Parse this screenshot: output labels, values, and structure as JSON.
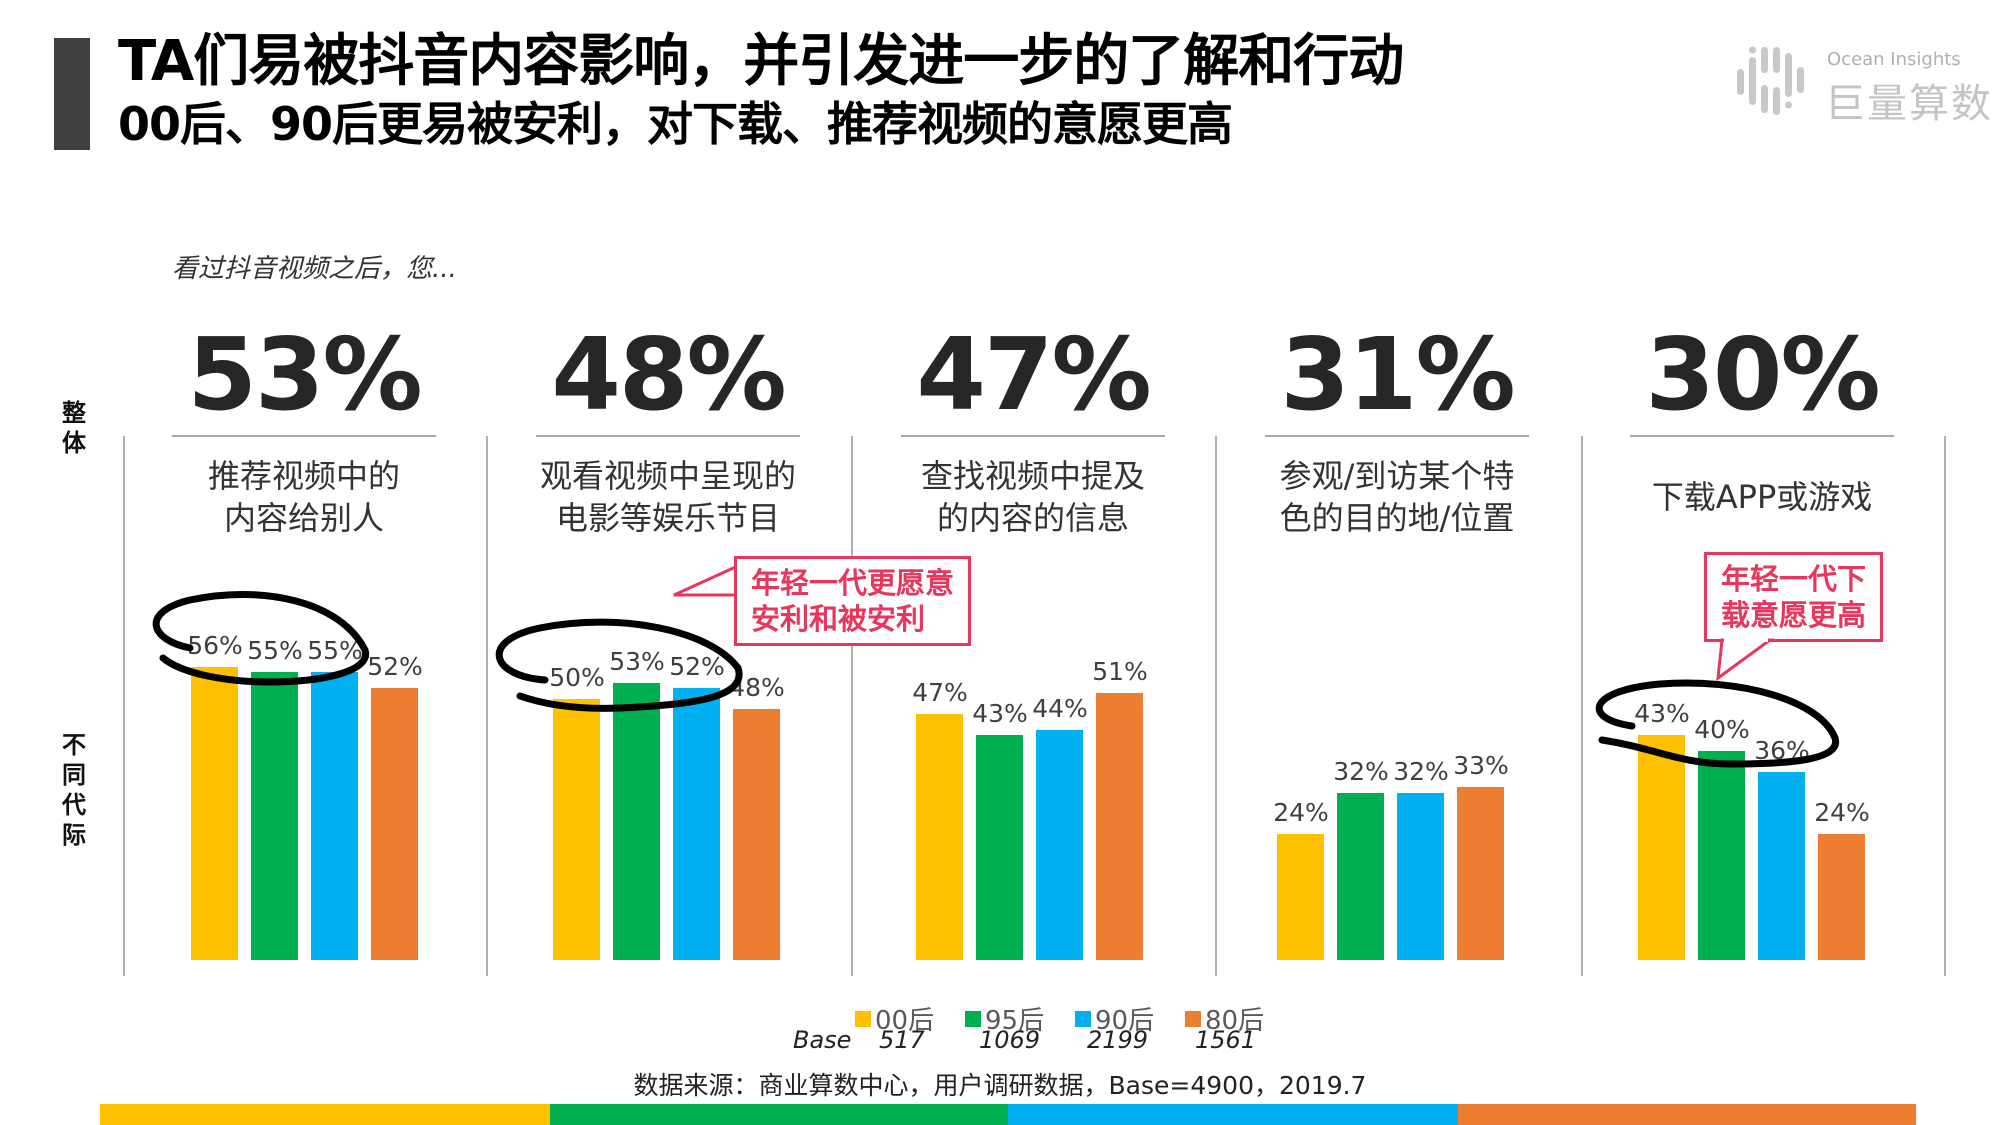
{
  "header": {
    "title": "TA们易被抖音内容影响，并引发进一步的了解和行动",
    "subtitle": "00后、90后更易被安利，对下载、推荐视频的意愿更高"
  },
  "logo": {
    "en": "Ocean Insights",
    "cn": "巨量算数"
  },
  "question": "看过抖音视频之后，您...",
  "side_labels": {
    "overall": "整体",
    "generations": "不同代际"
  },
  "callouts": [
    {
      "line1": "年轻一代更愿意",
      "line2": "安利和被安利"
    },
    {
      "line1": "年轻一代下",
      "line2": "载意愿更高"
    }
  ],
  "legend": {
    "base_label": "Base",
    "items": [
      {
        "label": "00后",
        "base": "517",
        "color": "#FFC000"
      },
      {
        "label": "95后",
        "base": "1069",
        "color": "#00B050"
      },
      {
        "label": "90后",
        "base": "2199",
        "color": "#00B0F0"
      },
      {
        "label": "80后",
        "base": "1561",
        "color": "#ED7D31"
      }
    ]
  },
  "source": "数据来源：商业算数中心，用户调研数据，Base=4900，2019.7",
  "colors": {
    "y00": "#FFC000",
    "y95": "#00B050",
    "y90": "#00B0F0",
    "y80": "#ED7D31",
    "accent": "#E8365D"
  },
  "groups": [
    {
      "overall": "53%",
      "desc1": "推荐视频中的",
      "desc2": "内容给别人",
      "labels": [
        "56%",
        "55%",
        "55%",
        "52%"
      ]
    },
    {
      "overall": "48%",
      "desc1": "观看视频中呈现的",
      "desc2": "电影等娱乐节目",
      "labels": [
        "50%",
        "53%",
        "52%",
        "48%"
      ]
    },
    {
      "overall": "47%",
      "desc1": "查找视频中提及",
      "desc2": "的内容的信息",
      "labels": [
        "47%",
        "43%",
        "44%",
        "51%"
      ]
    },
    {
      "overall": "31%",
      "desc1": "参观/到访某个特",
      "desc2": "色的目的地/位置",
      "labels": [
        "24%",
        "32%",
        "32%",
        "33%"
      ]
    },
    {
      "overall": "30%",
      "desc1": "下载APP或游戏",
      "desc2": "",
      "labels": [
        "43%",
        "40%",
        "36%",
        "24%"
      ]
    }
  ],
  "chart_data": {
    "type": "bar",
    "title": "看过抖音视频之后，您...",
    "categories": [
      "推荐视频中的内容给别人",
      "观看视频中呈现的电影等娱乐节目",
      "查找视频中提及的内容的信息",
      "参观/到访某个特色的目的地/位置",
      "下载APP或游戏"
    ],
    "overall": [
      53,
      48,
      47,
      31,
      30
    ],
    "series": [
      {
        "name": "00后",
        "base": 517,
        "values": [
          56,
          50,
          47,
          24,
          43
        ]
      },
      {
        "name": "95后",
        "base": 1069,
        "values": [
          55,
          53,
          43,
          32,
          40
        ]
      },
      {
        "name": "90后",
        "base": 2199,
        "values": [
          55,
          52,
          44,
          32,
          36
        ]
      },
      {
        "name": "80后",
        "base": 1561,
        "values": [
          52,
          48,
          51,
          33,
          24
        ]
      }
    ],
    "xlabel": "",
    "ylabel": "%",
    "ylim": [
      0,
      60
    ],
    "grid": false,
    "legend_position": "bottom",
    "annotations": [
      "年轻一代更愿意安利和被安利",
      "年轻一代下载意愿更高"
    ]
  }
}
